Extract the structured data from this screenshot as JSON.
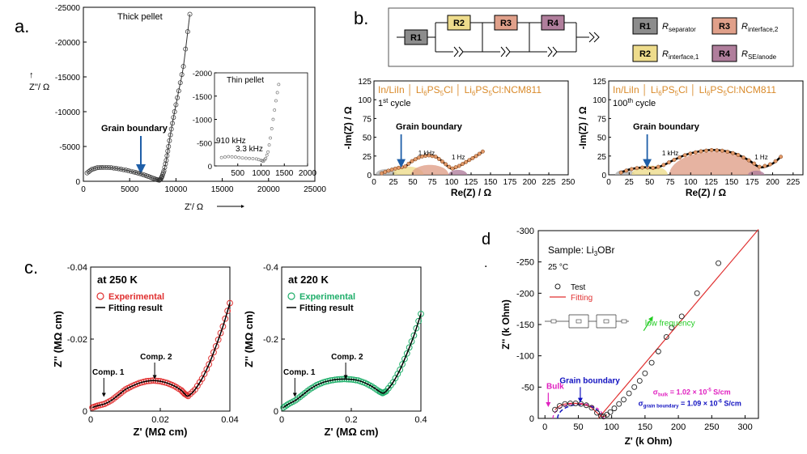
{
  "panel_labels": {
    "a": "a.",
    "b": "b.",
    "c": "c.",
    "d": "d",
    "d_dot": "."
  },
  "panel_a": {
    "main": {
      "title": "Thick pellet",
      "ylabel": "Z''/ Ω",
      "xlabel": "Z'/ Ω",
      "arrow_label": "Grain boundary",
      "xticks": [
        "0",
        "5000",
        "10000",
        "15000",
        "20000",
        "25000"
      ],
      "yticks": [
        "0",
        "-5000",
        "-10000",
        "-15000",
        "-20000",
        "-25000"
      ]
    },
    "inset": {
      "title": "Thin pellet",
      "label_910": "910 kHz",
      "label_33": "3.3 kHz",
      "xticks": [
        "500",
        "1000",
        "1500",
        "2000"
      ],
      "yticks": [
        "0",
        "-500",
        "-1000",
        "-1500",
        "-2000"
      ]
    }
  },
  "panel_b": {
    "circuit": {
      "elements": [
        "R1",
        "R2",
        "R3",
        "R4"
      ]
    },
    "legend": [
      {
        "box": "R1",
        "symbol": "R",
        "sub": "separator",
        "color": "#8c8c8c"
      },
      {
        "box": "R3",
        "symbol": "R",
        "sub": "interface,2",
        "color": "#e0a08a"
      },
      {
        "box": "R2",
        "symbol": "R",
        "sub": "interface,1",
        "color": "#eedc8c"
      },
      {
        "box": "R4",
        "symbol": "R",
        "sub": "SE/anode",
        "color": "#b07e9c"
      }
    ],
    "plots": [
      {
        "header": "In/LiIn│Li6PS5Cl│Li6PS5Cl:NCM811",
        "header_parts": [
          "In/LiIn",
          "Li",
          "6",
          "PS",
          "5",
          "Cl",
          "Li",
          "6",
          "PS",
          "5",
          "Cl:NCM811"
        ],
        "cycle": "1",
        "cycle_sup": "st",
        "cycle_word": " cycle",
        "gb_label": "Grain boundary",
        "f1": "1 kHz",
        "f2": "1 Hz",
        "ylabel": "-Im(Z) / Ω",
        "xlabel": "Re(Z) / Ω",
        "xticks": [
          "0",
          "25",
          "50",
          "75",
          "100",
          "125",
          "150",
          "175",
          "200",
          "225",
          "250"
        ],
        "yticks": [
          "0",
          "25",
          "50",
          "75",
          "100",
          "125"
        ]
      },
      {
        "header": "In/LiIn│Li6PS5Cl│Li6PS5Cl:NCM811",
        "cycle": "100",
        "cycle_sup": "th",
        "cycle_word": " cycle",
        "gb_label": "Grain boundary",
        "f1": "1 kHz",
        "f2": "1 Hz",
        "ylabel": "-Im(Z) / Ω",
        "xlabel": "Re(Z) / Ω",
        "xticks": [
          "0",
          "25",
          "50",
          "75",
          "100",
          "125",
          "150",
          "175",
          "200",
          "225"
        ],
        "yticks": [
          "0",
          "25",
          "50",
          "75",
          "100",
          "125"
        ]
      }
    ]
  },
  "panel_c": {
    "plots": [
      {
        "title": "at 250 K",
        "legend_exp": "Experimental",
        "legend_fit": "Fitting result",
        "comp1": "Comp. 1",
        "comp2": "Comp. 2",
        "ylabel": "Z'' (MΩ cm)",
        "xlabel": "Z' (MΩ cm)",
        "xticks": [
          "0",
          "0.02",
          "0.04"
        ],
        "yticks": [
          "0",
          "-0.02",
          "-0.04"
        ],
        "color": "#e03030"
      },
      {
        "title": "at 220 K",
        "legend_exp": "Experimental",
        "legend_fit": "Fitting result",
        "comp1": "Comp. 1",
        "comp2": "Comp. 2",
        "ylabel": "Z'' (MΩ cm)",
        "xlabel": "Z' (MΩ cm)",
        "xticks": [
          "0",
          "0.2",
          "0.4"
        ],
        "yticks": [
          "0",
          "-0.2",
          "-0.4"
        ],
        "color": "#1fae6a"
      }
    ]
  },
  "panel_d": {
    "sample": "Sample: Li3OBr",
    "sample_prefix": "Sample: Li",
    "sample_sub": "3",
    "sample_suffix": "OBr",
    "temp": "25 °C",
    "legend_test": "Test",
    "legend_fit": "Fitting",
    "low_freq": "low frequency",
    "bulk": "Bulk",
    "grain_boundary": "Grain boundary",
    "sigma_bulk": "σbulk = 1.02 × 10-5 S/cm",
    "sigma_bulk_parts": [
      "σ",
      "bulk",
      " = 1.02 × 10",
      "-5",
      " S/cm"
    ],
    "sigma_gb": "σgrain boundary = 1.09 × 10-6 S/cm",
    "sigma_gb_parts": [
      "σ",
      "grain boundary",
      " = 1.09 × 10",
      "-6",
      " S/cm"
    ],
    "ylabel": "Z'' (k Ohm)",
    "xlabel": "Z' (k Ohm)",
    "xticks": [
      "0",
      "50",
      "100",
      "150",
      "200",
      "250",
      "300"
    ],
    "yticks": [
      "0",
      "-50",
      "-100",
      "-150",
      "-200",
      "-250",
      "-300"
    ]
  },
  "chart_data": [
    {
      "type": "scatter",
      "title": "Thick pellet",
      "xlabel": "Z'/ Ω",
      "ylabel": "Z''/ Ω",
      "xlim": [
        0,
        25000
      ],
      "ylim": [
        0,
        -25000
      ],
      "series": [
        {
          "name": "Thick pellet",
          "x": [
            400,
            900,
            1500,
            2200,
            3000,
            3800,
            4600,
            5400,
            6100,
            6800,
            7400,
            7900,
            8200,
            8350,
            8500,
            8700,
            8950,
            9200,
            9500,
            9850,
            10300,
            10800,
            11500
          ],
          "y": [
            -1200,
            -1700,
            -1950,
            -2000,
            -1950,
            -1800,
            -1600,
            -1350,
            -1100,
            -800,
            -500,
            -250,
            -150,
            -300,
            -700,
            -1500,
            -3000,
            -5000,
            -7500,
            -10000,
            -13000,
            -16500,
            -24000
          ]
        }
      ]
    },
    {
      "type": "scatter",
      "title": "Thin pellet",
      "xlim": [
        0,
        2000
      ],
      "ylim": [
        0,
        -2000
      ],
      "series": [
        {
          "name": "Thin pellet",
          "x": [
            150,
            300,
            450,
            600,
            750,
            900,
            1000,
            1050,
            1100,
            1150,
            1200,
            1260,
            1320,
            1380
          ],
          "y": [
            -180,
            -200,
            -190,
            -170,
            -160,
            -150,
            -120,
            -100,
            -160,
            -300,
            -600,
            -1000,
            -1400,
            -1750
          ]
        }
      ]
    },
    {
      "type": "line",
      "title": "1st cycle",
      "xlabel": "Re(Z) / Ω",
      "ylabel": "-Im(Z) / Ω",
      "xlim": [
        0,
        250
      ],
      "ylim": [
        0,
        125
      ],
      "series": [
        {
          "name": "1st cycle",
          "x": [
            10,
            20,
            30,
            40,
            50,
            60,
            70,
            80,
            90,
            100,
            110,
            120,
            130,
            140
          ],
          "y": [
            2,
            6,
            9,
            11,
            19,
            24,
            26,
            24,
            16,
            8,
            12,
            18,
            24,
            31
          ]
        }
      ]
    },
    {
      "type": "line",
      "title": "100th cycle",
      "xlabel": "Re(Z) / Ω",
      "ylabel": "-Im(Z) / Ω",
      "xlim": [
        0,
        225
      ],
      "ylim": [
        0,
        125
      ],
      "series": [
        {
          "name": "100th cycle",
          "x": [
            15,
            25,
            35,
            45,
            55,
            65,
            80,
            95,
            110,
            125,
            140,
            155,
            170,
            185,
            200,
            210
          ],
          "y": [
            3,
            7,
            9,
            10,
            9,
            12,
            20,
            27,
            31,
            33,
            32,
            28,
            20,
            10,
            15,
            24
          ]
        }
      ]
    },
    {
      "type": "scatter",
      "title": "at 250 K",
      "xlabel": "Z' (MΩ cm)",
      "ylabel": "Z'' (MΩ cm)",
      "xlim": [
        0,
        0.04
      ],
      "ylim": [
        0,
        -0.04
      ],
      "series": [
        {
          "name": "Experimental",
          "x": [
            0.0005,
            0.002,
            0.004,
            0.006,
            0.008,
            0.01,
            0.012,
            0.014,
            0.016,
            0.018,
            0.02,
            0.022,
            0.024,
            0.026,
            0.027,
            0.028,
            0.03,
            0.032,
            0.034,
            0.036,
            0.038,
            0.04
          ],
          "y": [
            -0.001,
            -0.0015,
            -0.002,
            -0.003,
            -0.0045,
            -0.006,
            -0.007,
            -0.0078,
            -0.0083,
            -0.0085,
            -0.0083,
            -0.0078,
            -0.007,
            -0.0058,
            -0.0048,
            -0.0042,
            -0.006,
            -0.009,
            -0.013,
            -0.018,
            -0.0235,
            -0.03
          ]
        }
      ]
    },
    {
      "type": "scatter",
      "title": "at 220 K",
      "xlabel": "Z' (MΩ cm)",
      "ylabel": "Z'' (MΩ cm)",
      "xlim": [
        0,
        0.4
      ],
      "ylim": [
        0,
        -0.4
      ],
      "series": [
        {
          "name": "Experimental",
          "x": [
            0.005,
            0.02,
            0.04,
            0.06,
            0.08,
            0.1,
            0.12,
            0.14,
            0.16,
            0.18,
            0.2,
            0.22,
            0.24,
            0.26,
            0.28,
            0.29,
            0.3,
            0.32,
            0.34,
            0.36,
            0.38,
            0.4
          ],
          "y": [
            -0.01,
            -0.02,
            -0.03,
            -0.045,
            -0.06,
            -0.072,
            -0.08,
            -0.085,
            -0.088,
            -0.089,
            -0.088,
            -0.085,
            -0.078,
            -0.068,
            -0.055,
            -0.05,
            -0.055,
            -0.08,
            -0.115,
            -0.16,
            -0.21,
            -0.27
          ]
        }
      ]
    },
    {
      "type": "scatter",
      "title": "Sample: Li3OBr",
      "xlabel": "Z' (k Ohm)",
      "ylabel": "Z'' (k Ohm)",
      "xlim": [
        -10,
        320
      ],
      "ylim": [
        0,
        -300
      ],
      "series": [
        {
          "name": "Test",
          "x": [
            15,
            22,
            30,
            38,
            46,
            54,
            62,
            70,
            78,
            84,
            88,
            93,
            98,
            104,
            111,
            118,
            126,
            134,
            142,
            150,
            160,
            170,
            182,
            190,
            205,
            228,
            260
          ],
          "y": [
            -14,
            -20,
            -23,
            -24,
            -24,
            -23,
            -21,
            -17,
            -9,
            -4,
            -3,
            -6,
            -10,
            -16,
            -23,
            -30,
            -40,
            -50,
            -60,
            -72,
            -89,
            -107,
            -130,
            -145,
            -163,
            -200,
            -248
          ]
        },
        {
          "name": "Fitting",
          "x": [
            80,
            320
          ],
          "y": [
            0,
            -302
          ]
        }
      ]
    }
  ]
}
